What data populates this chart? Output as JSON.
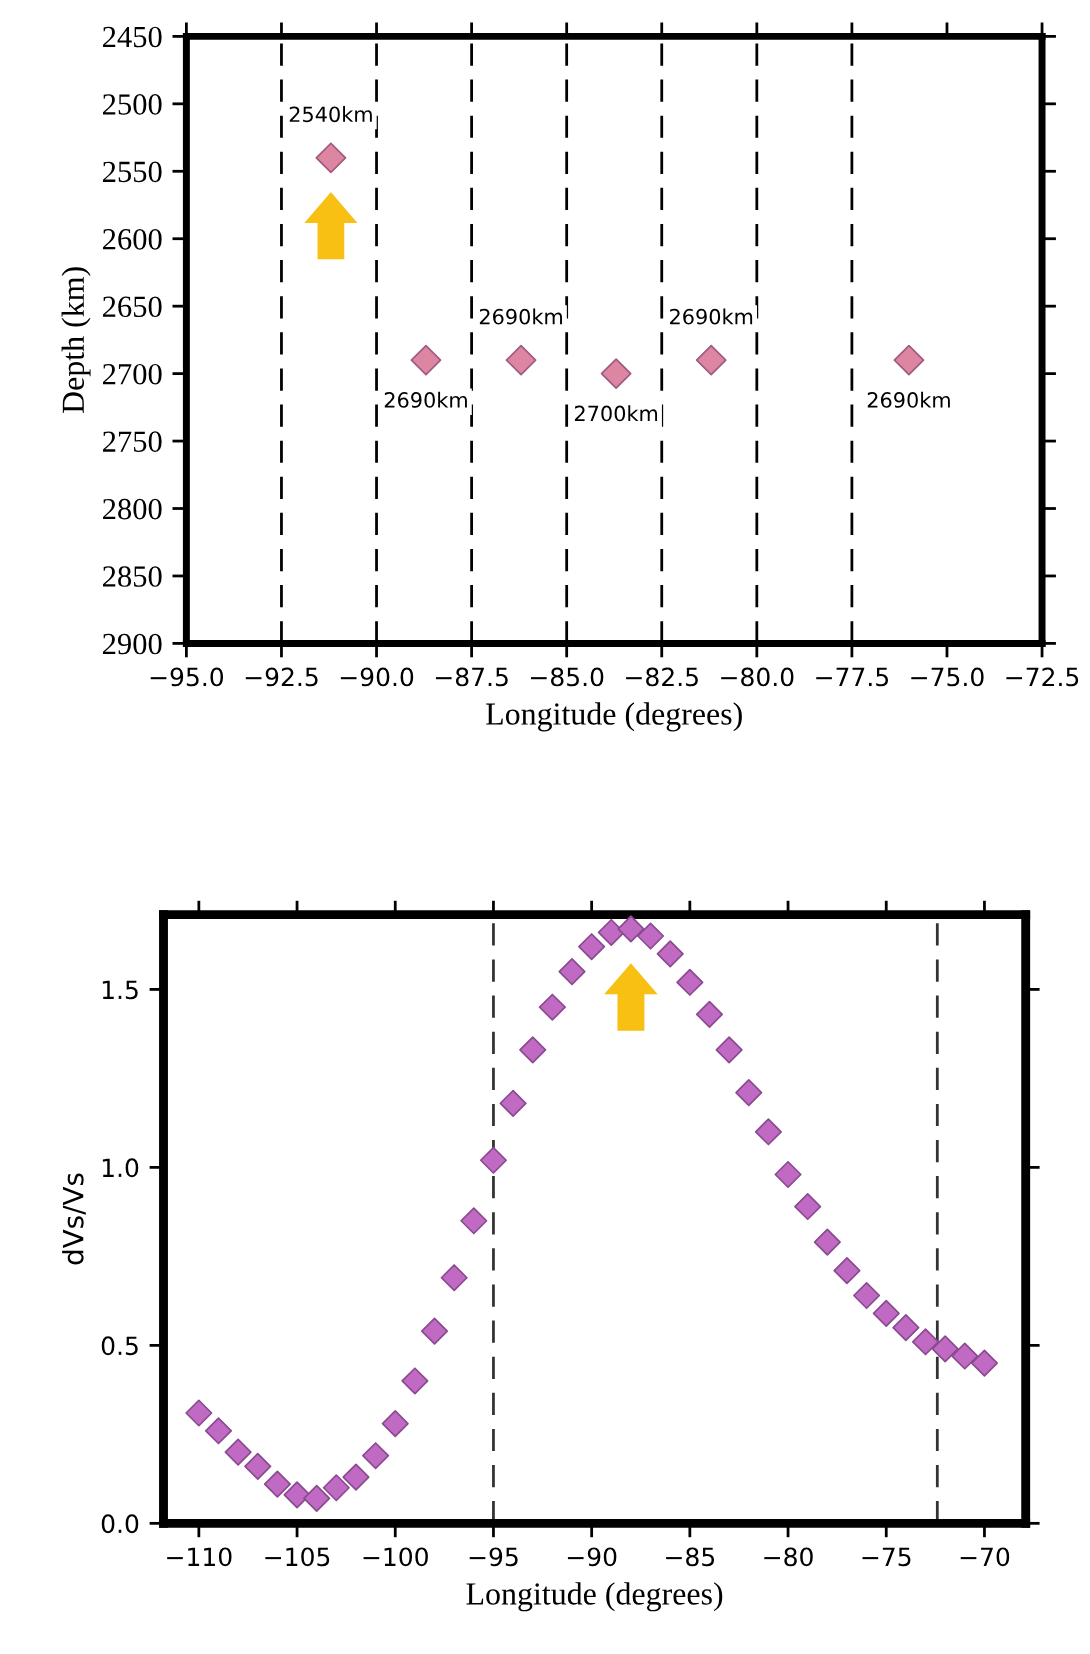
{
  "chart_data": [
    {
      "type": "scatter",
      "xlabel": "Longitude (degrees)",
      "ylabel": "Depth (km)",
      "marker": "diamond",
      "x": [
        -91.2,
        -88.7,
        -86.2,
        -83.7,
        -81.2,
        -76.0
      ],
      "series": [
        {
          "color": "#dc86a2",
          "values": [
            2540,
            2690,
            2690,
            2700,
            2690,
            2690
          ],
          "value_labels": [
            "2540km",
            "2690km",
            "2690km",
            "2700km",
            "2690km",
            "2690km"
          ]
        }
      ],
      "xlim": [
        -95,
        -72.5
      ],
      "ylim": [
        2900,
        2450
      ],
      "xticks": [
        {
          "value": -95,
          "label": "−95.0"
        },
        {
          "value": -92.5,
          "label": "−92.5"
        },
        {
          "value": -90,
          "label": "−90.0"
        },
        {
          "value": -87.5,
          "label": "−87.5"
        },
        {
          "value": -85,
          "label": "−85.0"
        },
        {
          "value": -82.5,
          "label": "−82.5"
        },
        {
          "value": -80,
          "label": "−80.0"
        },
        {
          "value": -77.5,
          "label": "−77.5"
        },
        {
          "value": -75,
          "label": "−75.0"
        },
        {
          "value": -72.5,
          "label": "−72.5"
        }
      ],
      "yticks": [
        2450,
        2500,
        2550,
        2600,
        2650,
        2700,
        2750,
        2800,
        2850,
        2900
      ],
      "ref_lines": [
        {
          "axis": "x",
          "value": -92.5,
          "line_style": "dashed",
          "color": "#000000"
        },
        {
          "axis": "x",
          "value": -90,
          "line_style": "dashed",
          "color": "#000000"
        },
        {
          "axis": "x",
          "value": -87.5,
          "line_style": "dashed",
          "color": "#000000"
        },
        {
          "axis": "x",
          "value": -85,
          "line_style": "dashed",
          "color": "#000000"
        },
        {
          "axis": "x",
          "value": -82.5,
          "line_style": "dashed",
          "color": "#000000"
        },
        {
          "axis": "x",
          "value": -80,
          "line_style": "dashed",
          "color": "#000000"
        },
        {
          "axis": "x",
          "value": -77.5,
          "line_style": "dashed",
          "color": "#000000"
        }
      ]
    },
    {
      "type": "scatter",
      "xlabel": "Longitude (degrees)",
      "ylabel": "dVs/Vs",
      "marker": "diamond",
      "x": [
        -110,
        -109,
        -108,
        -107,
        -106,
        -105,
        -104,
        -103,
        -102,
        -101,
        -100,
        -99,
        -98,
        -97,
        -96,
        -95,
        -94,
        -93,
        -92,
        -91,
        -90,
        -89,
        -88,
        -87,
        -86,
        -85,
        -84,
        -83,
        -82,
        -81,
        -80,
        -79,
        -78,
        -77,
        -76,
        -75,
        -74,
        -73,
        -72,
        -71,
        -70
      ],
      "series": [
        {
          "color": "#c06ac4",
          "values": [
            0.31,
            0.26,
            0.2,
            0.16,
            0.11,
            0.08,
            0.07,
            0.1,
            0.13,
            0.19,
            0.28,
            0.4,
            0.54,
            0.69,
            0.85,
            1.02,
            1.18,
            1.33,
            1.45,
            1.55,
            1.62,
            1.66,
            1.67,
            1.65,
            1.6,
            1.52,
            1.43,
            1.33,
            1.21,
            1.1,
            0.98,
            0.89,
            0.79,
            0.71,
            0.64,
            0.59,
            0.55,
            0.51,
            0.49,
            0.47,
            0.45
          ]
        }
      ],
      "xlim": [
        -111.8,
        -67.9
      ],
      "ylim": [
        0,
        1.71
      ],
      "xticks": [
        {
          "value": -110,
          "label": "−110"
        },
        {
          "value": -105,
          "label": "−105"
        },
        {
          "value": -100,
          "label": "−100"
        },
        {
          "value": -95,
          "label": "−95"
        },
        {
          "value": -90,
          "label": "−90"
        },
        {
          "value": -85,
          "label": "−85"
        },
        {
          "value": -80,
          "label": "−80"
        },
        {
          "value": -75,
          "label": "−75"
        },
        {
          "value": -70,
          "label": "−70"
        }
      ],
      "yticks": [
        {
          "value": 0,
          "label": "0.0"
        },
        {
          "value": 0.5,
          "label": "0.5"
        },
        {
          "value": 1.0,
          "label": "1.0"
        },
        {
          "value": 1.5,
          "label": "1.5"
        }
      ],
      "ref_lines": [
        {
          "axis": "x",
          "value": -95,
          "line_style": "dashed",
          "color": "#333333"
        },
        {
          "axis": "x",
          "value": -72.4,
          "line_style": "dashed",
          "color": "#333333"
        }
      ]
    }
  ]
}
